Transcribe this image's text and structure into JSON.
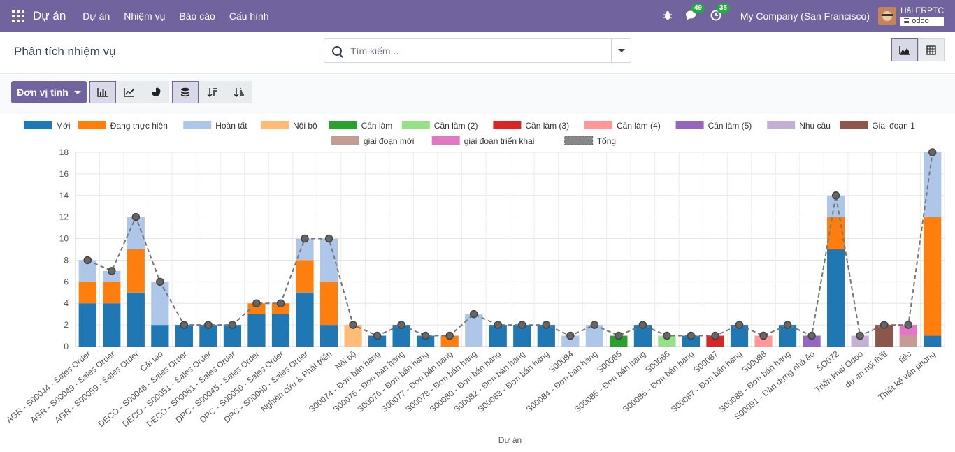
{
  "topbar": {
    "app_name": "Dự án",
    "menu": [
      "Dự án",
      "Nhiệm vụ",
      "Báo cáo",
      "Cấu hình"
    ],
    "messages_count": "49",
    "activities_count": "35",
    "company": "My Company (San Francisco)",
    "user_name": "Hải ERPTC",
    "database": "odoo",
    "accent": "#71639e"
  },
  "control": {
    "breadcrumb": "Phân tích nhiệm vụ",
    "search_placeholder": "Tìm kiếm...",
    "views": [
      "graph-view-icon",
      "pivot-view-icon"
    ],
    "active_view": "graph"
  },
  "toolbar": {
    "measure_label": "Đơn vị tính",
    "chart_types": [
      "bar-chart-icon",
      "line-chart-icon",
      "pie-chart-icon"
    ],
    "active_chart": "bar",
    "stacked": true
  },
  "chart_data": {
    "type": "bar",
    "stacked": true,
    "xlabel": "Dự án",
    "ylabel": "",
    "ylim": [
      0,
      18
    ],
    "yticks": [
      0,
      2,
      4,
      6,
      8,
      10,
      12,
      14,
      16,
      18
    ],
    "grid": true,
    "legend_position": "top",
    "categories": [
      "AGR - S00044 - Sales Order",
      "AGR - S00049 - Sales Order",
      "AGR - S00059 - Sales Order",
      "Cải tạo",
      "DECO - S00046 - Sales Order",
      "DECO - S00051 - Sales Order",
      "DECO - S00061 - Sales Order",
      "DPC - S00045 - Sales Order",
      "DPC - S00050 - Sales Order",
      "DPC - S00060 - Sales Order",
      "Nghiên cứu & Phát triển",
      "Nội bộ",
      "S00074 - Đơn bán hàng",
      "S00075 - Đơn bán hàng",
      "S00076 - Đơn bán hàng",
      "S00077 - Đơn bán hàng",
      "S00078 - Đơn bán hàng",
      "S00080 - Đơn bán hàng",
      "S00082 - Đơn bán hàng",
      "S00083 - Đơn bán hàng",
      "S00084",
      "S00084 - Đơn bán hàng",
      "S00085",
      "S00085 - Đơn bán hàng",
      "S00086",
      "S00086 - Đơn bán hàng",
      "S00087",
      "S00087 - Đơn bán hàng",
      "S00088",
      "S00088 - Đơn bán hàng",
      "S00091 - Dàn dựng nhà ảo",
      "SO072",
      "Triển khai Odoo",
      "dự án nội thất",
      "tiệc",
      "Thiết kế văn phòng"
    ],
    "series": [
      {
        "name": "Mới",
        "color": "#1f77b4",
        "values": [
          4,
          4,
          5,
          2,
          2,
          2,
          2,
          3,
          3,
          5,
          2,
          0,
          1,
          2,
          1,
          0,
          0,
          2,
          2,
          2,
          0,
          0,
          0,
          2,
          0,
          1,
          0,
          2,
          0,
          2,
          0,
          9,
          0,
          0,
          0,
          1
        ]
      },
      {
        "name": "Đang thực hiện",
        "color": "#ff7f0e",
        "values": [
          2,
          2,
          4,
          0,
          0,
          0,
          0,
          1,
          1,
          3,
          4,
          0,
          0,
          0,
          0,
          1,
          0,
          0,
          0,
          0,
          0,
          0,
          0,
          0,
          0,
          0,
          0,
          0,
          0,
          0,
          0,
          3,
          0,
          0,
          0,
          11
        ]
      },
      {
        "name": "Hoàn tất",
        "color": "#aec7e8",
        "values": [
          2,
          1,
          3,
          4,
          0,
          0,
          0,
          0,
          0,
          2,
          4,
          0,
          0,
          0,
          0,
          0,
          3,
          0,
          0,
          0,
          1,
          2,
          0,
          0,
          0,
          0,
          0,
          0,
          0,
          0,
          0,
          2,
          0,
          0,
          0,
          6
        ]
      },
      {
        "name": "Nội bộ",
        "color": "#ffbb78",
        "values": [
          0,
          0,
          0,
          0,
          0,
          0,
          0,
          0,
          0,
          0,
          0,
          2,
          0,
          0,
          0,
          0,
          0,
          0,
          0,
          0,
          0,
          0,
          0,
          0,
          0,
          0,
          0,
          0,
          0,
          0,
          0,
          0,
          0,
          0,
          0,
          0
        ]
      },
      {
        "name": "Cần làm",
        "color": "#2ca02c",
        "values": [
          0,
          0,
          0,
          0,
          0,
          0,
          0,
          0,
          0,
          0,
          0,
          0,
          0,
          0,
          0,
          0,
          0,
          0,
          0,
          0,
          0,
          0,
          1,
          0,
          0,
          0,
          0,
          0,
          0,
          0,
          0,
          0,
          0,
          0,
          0,
          0
        ]
      },
      {
        "name": "Cần làm (2)",
        "color": "#98df8a",
        "values": [
          0,
          0,
          0,
          0,
          0,
          0,
          0,
          0,
          0,
          0,
          0,
          0,
          0,
          0,
          0,
          0,
          0,
          0,
          0,
          0,
          0,
          0,
          0,
          0,
          1,
          0,
          0,
          0,
          0,
          0,
          0,
          0,
          0,
          0,
          0,
          0
        ]
      },
      {
        "name": "Cần làm (3)",
        "color": "#d62728",
        "values": [
          0,
          0,
          0,
          0,
          0,
          0,
          0,
          0,
          0,
          0,
          0,
          0,
          0,
          0,
          0,
          0,
          0,
          0,
          0,
          0,
          0,
          0,
          0,
          0,
          0,
          0,
          1,
          0,
          0,
          0,
          0,
          0,
          0,
          0,
          0,
          0
        ]
      },
      {
        "name": "Cần làm (4)",
        "color": "#ff9896",
        "values": [
          0,
          0,
          0,
          0,
          0,
          0,
          0,
          0,
          0,
          0,
          0,
          0,
          0,
          0,
          0,
          0,
          0,
          0,
          0,
          0,
          0,
          0,
          0,
          0,
          0,
          0,
          0,
          0,
          1,
          0,
          0,
          0,
          0,
          0,
          0,
          0
        ]
      },
      {
        "name": "Cần làm (5)",
        "color": "#9467bd",
        "values": [
          0,
          0,
          0,
          0,
          0,
          0,
          0,
          0,
          0,
          0,
          0,
          0,
          0,
          0,
          0,
          0,
          0,
          0,
          0,
          0,
          0,
          0,
          0,
          0,
          0,
          0,
          0,
          0,
          0,
          0,
          1,
          0,
          0,
          0,
          0,
          0
        ]
      },
      {
        "name": "Nhu cầu",
        "color": "#c5b0d5",
        "values": [
          0,
          0,
          0,
          0,
          0,
          0,
          0,
          0,
          0,
          0,
          0,
          0,
          0,
          0,
          0,
          0,
          0,
          0,
          0,
          0,
          0,
          0,
          0,
          0,
          0,
          0,
          0,
          0,
          0,
          0,
          0,
          0,
          1,
          0,
          0,
          0
        ]
      },
      {
        "name": "Giai đoạn 1",
        "color": "#8c564b",
        "values": [
          0,
          0,
          0,
          0,
          0,
          0,
          0,
          0,
          0,
          0,
          0,
          0,
          0,
          0,
          0,
          0,
          0,
          0,
          0,
          0,
          0,
          0,
          0,
          0,
          0,
          0,
          0,
          0,
          0,
          0,
          0,
          0,
          0,
          2,
          0,
          0
        ]
      },
      {
        "name": "giai đoạn mới",
        "color": "#c49c94",
        "values": [
          0,
          0,
          0,
          0,
          0,
          0,
          0,
          0,
          0,
          0,
          0,
          0,
          0,
          0,
          0,
          0,
          0,
          0,
          0,
          0,
          0,
          0,
          0,
          0,
          0,
          0,
          0,
          0,
          0,
          0,
          0,
          0,
          0,
          0,
          1,
          0
        ]
      },
      {
        "name": "giai đoạn triển khai",
        "color": "#e377c2",
        "values": [
          0,
          0,
          0,
          0,
          0,
          0,
          0,
          0,
          0,
          0,
          0,
          0,
          0,
          0,
          0,
          0,
          0,
          0,
          0,
          0,
          0,
          0,
          0,
          0,
          0,
          0,
          0,
          0,
          0,
          0,
          0,
          0,
          0,
          0,
          1,
          0
        ]
      }
    ],
    "total_series": {
      "name": "Tổng",
      "style": "dashed-line-with-markers",
      "color": "#555555",
      "values": [
        8,
        7,
        12,
        6,
        2,
        2,
        2,
        4,
        4,
        10,
        10,
        2,
        1,
        2,
        1,
        1,
        3,
        2,
        2,
        2,
        1,
        2,
        1,
        2,
        1,
        1,
        1,
        2,
        1,
        2,
        1,
        14,
        1,
        2,
        2,
        18
      ]
    }
  }
}
